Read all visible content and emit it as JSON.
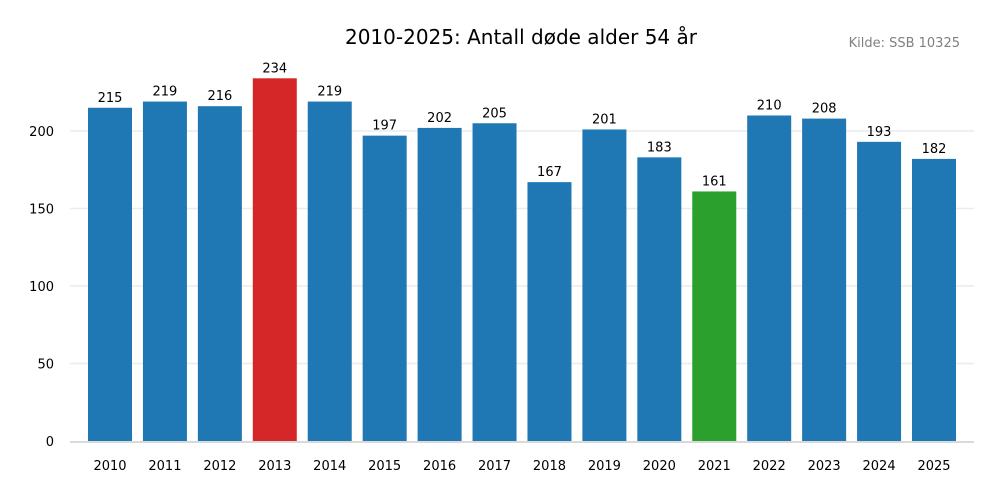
{
  "chart_data": {
    "type": "bar",
    "title": "2010-2025: Antall døde alder 54 år",
    "source": "Kilde: SSB 10325",
    "categories": [
      "2010",
      "2011",
      "2012",
      "2013",
      "2014",
      "2015",
      "2016",
      "2017",
      "2018",
      "2019",
      "2020",
      "2021",
      "2022",
      "2023",
      "2024",
      "2025"
    ],
    "values": [
      215,
      219,
      216,
      234,
      219,
      197,
      202,
      205,
      167,
      201,
      183,
      161,
      210,
      208,
      193,
      182
    ],
    "colors": [
      "#1f77b4",
      "#1f77b4",
      "#1f77b4",
      "#d62728",
      "#1f77b4",
      "#1f77b4",
      "#1f77b4",
      "#1f77b4",
      "#1f77b4",
      "#1f77b4",
      "#1f77b4",
      "#2ca02c",
      "#1f77b4",
      "#1f77b4",
      "#1f77b4",
      "#1f77b4"
    ],
    "yticks": [
      0,
      50,
      100,
      150,
      200
    ],
    "ylim": [
      0,
      250
    ],
    "xlabel": "",
    "ylabel": "",
    "grid": "horizontal",
    "legend": "none"
  }
}
